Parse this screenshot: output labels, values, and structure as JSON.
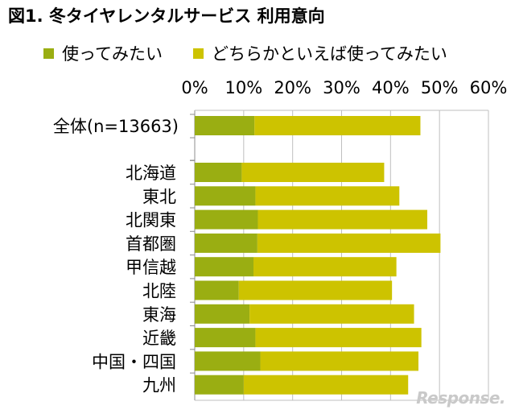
{
  "chart_data": {
    "type": "bar",
    "orientation": "horizontal",
    "stacked": true,
    "title": "図1. 冬タイヤレンタルサービス 利用意向",
    "categories": [
      "全体(n=13663)",
      "北海道",
      "東北",
      "北関東",
      "首都圏",
      "甲信越",
      "北陸",
      "東海",
      "近畿",
      "中国・四国",
      "九州"
    ],
    "series": [
      {
        "name": "使ってみたい",
        "color": "#9aae12",
        "values": [
          12.2,
          9.6,
          12.4,
          12.9,
          12.8,
          12.0,
          9.0,
          11.2,
          12.4,
          13.4,
          10.0
        ]
      },
      {
        "name": "どちらかといえば使ってみたい",
        "color": "#cdc300",
        "values": [
          33.9,
          29.1,
          29.4,
          34.6,
          37.4,
          29.2,
          31.3,
          33.6,
          33.9,
          32.3,
          33.6
        ]
      }
    ],
    "xlim": [
      0,
      60
    ],
    "xticks": [
      "0%",
      "10%",
      "20%",
      "30%",
      "40%",
      "50%",
      "60%"
    ],
    "grid": true,
    "legend_position": "top"
  },
  "watermark": "Response."
}
